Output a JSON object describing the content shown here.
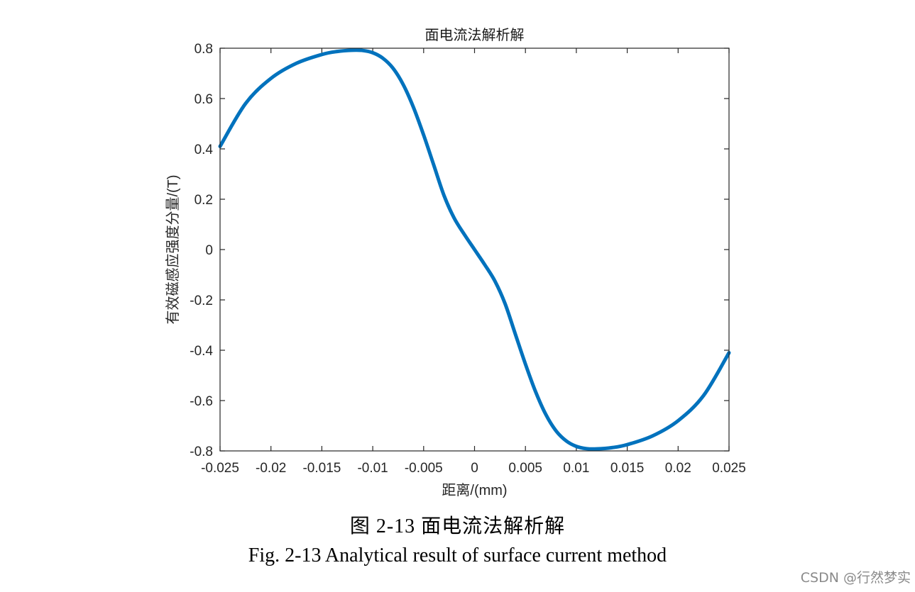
{
  "chart_data": {
    "type": "line",
    "title": "面电流法解析解",
    "xlabel": "距离/(mm)",
    "ylabel": "有效磁感应强度分量/(T)",
    "xlim": [
      -0.025,
      0.025
    ],
    "ylim": [
      -0.8,
      0.8
    ],
    "xticks": [
      "-0.025",
      "-0.02",
      "-0.015",
      "-0.01",
      "-0.005",
      "0",
      "0.005",
      "0.01",
      "0.015",
      "0.02",
      "0.025"
    ],
    "yticks": [
      "0.8",
      "0.6",
      "0.4",
      "0.2",
      "0",
      "-0.2",
      "-0.4",
      "-0.6",
      "-0.8"
    ],
    "grid": false,
    "line_color": "#0072BD",
    "series": [
      {
        "x": [
          -0.025,
          -0.0225,
          -0.02,
          -0.0175,
          -0.015,
          -0.0135,
          -0.012,
          -0.011,
          -0.01,
          -0.009,
          -0.008,
          -0.007,
          -0.006,
          -0.005,
          -0.004,
          -0.003,
          -0.002,
          -0.001,
          0,
          0.001,
          0.002,
          0.003,
          0.004,
          0.005,
          0.006,
          0.007,
          0.008,
          0.009,
          0.01,
          0.011,
          0.012,
          0.0135,
          0.015,
          0.0175,
          0.02,
          0.0225,
          0.025
        ],
        "y": [
          0.41,
          0.58,
          0.68,
          0.74,
          0.775,
          0.787,
          0.792,
          0.791,
          0.782,
          0.76,
          0.72,
          0.655,
          0.565,
          0.455,
          0.335,
          0.215,
          0.125,
          0.06,
          0,
          -0.06,
          -0.125,
          -0.215,
          -0.335,
          -0.455,
          -0.565,
          -0.655,
          -0.72,
          -0.76,
          -0.782,
          -0.791,
          -0.792,
          -0.787,
          -0.775,
          -0.74,
          -0.68,
          -0.58,
          -0.41
        ]
      }
    ]
  },
  "caption": {
    "chinese": "图  2-13 面电流法解析解",
    "english": "Fig. 2-13 Analytical result of surface current method"
  },
  "watermark": "CSDN @行然梦实"
}
